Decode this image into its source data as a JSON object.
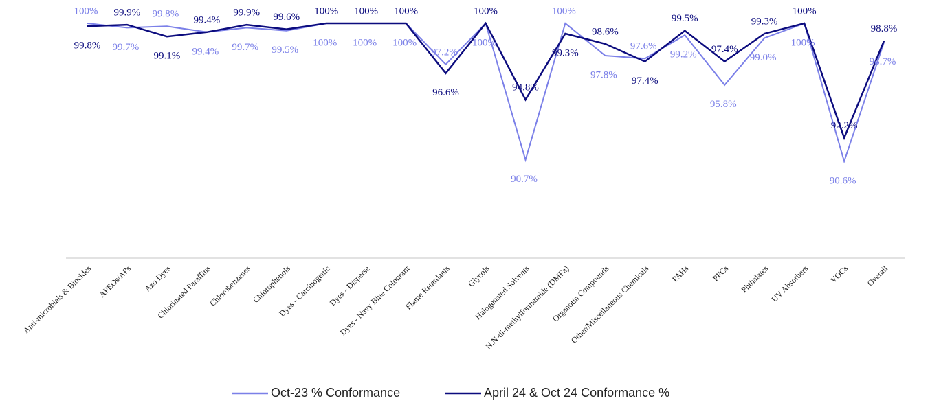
{
  "chart_data": {
    "type": "line",
    "categories": [
      "Anti-microbials & Biocides",
      "APEOs/APs",
      "Azo Dyes",
      "Chlorinated Paraffins",
      "Chlorobenzenes",
      "Chlorophenols",
      "Dyes - Carcinogenic",
      "Dyes - Disperse",
      "Dyes - Navy Blue Colourant",
      "Flame Retardants",
      "Glycols",
      "Halogenated Solvents",
      "N,N-di-methylformamide (DMFa)",
      "Organotin Compounds",
      "Other/Miscellaneous Chemicals",
      "PAHs",
      "PFCs",
      "Phthalates",
      "UV Absorbers",
      "VOCs",
      "Overall"
    ],
    "series": [
      {
        "name": "Oct-23 % Conformance",
        "color": "#7b80e8",
        "values": [
          100,
          99.7,
          99.8,
          99.4,
          99.7,
          99.5,
          100,
          100,
          100,
          97.2,
          100,
          90.7,
          100,
          97.8,
          97.6,
          99.2,
          95.8,
          99.0,
          100,
          90.6,
          98.7
        ],
        "value_labels": [
          "100%",
          "99.7%",
          "99.8%",
          "99.4%",
          "99.7%",
          "99.5%",
          "100%",
          "100%",
          "100%",
          "97.2%",
          "100%",
          "90.7%",
          "100%",
          "97.8%",
          "97.6%",
          "99.2%",
          "95.8%",
          "99.0%",
          "100%",
          "90.6%",
          "98.7%"
        ]
      },
      {
        "name": "April 24 & Oct 24 Conformance %",
        "color": "#0c0c7e",
        "values": [
          99.8,
          99.9,
          99.1,
          99.4,
          99.9,
          99.6,
          100,
          100,
          100,
          96.6,
          100,
          94.8,
          99.3,
          98.6,
          97.4,
          99.5,
          97.4,
          99.3,
          100,
          92.2,
          98.8
        ],
        "value_labels": [
          "99.8%",
          "99.9%",
          "99.1%",
          "99.4%",
          "99.9%",
          "99.6%",
          "100%",
          "100%",
          "100%",
          "96.6%",
          "100%",
          "94.8%",
          "99.3%",
          "98.6%",
          "97.4%",
          "99.5%",
          "97.4%",
          "99.3%",
          "100%",
          "92.2%",
          "98.8%"
        ]
      }
    ],
    "ylim": [
      84,
      100
    ],
    "legend": "bottom"
  }
}
